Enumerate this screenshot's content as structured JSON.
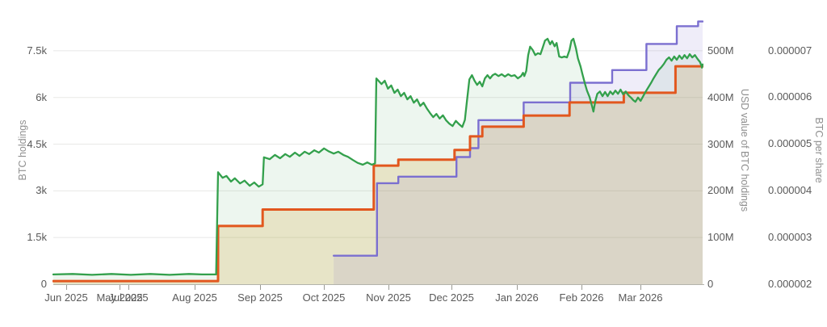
{
  "chart_data": {
    "type": "line",
    "title": "",
    "x_unit": "months after Jun 2025 tick (fractional month index)",
    "xlim": [
      -0.2,
      9.85
    ],
    "grid": true,
    "legend": "none",
    "background": "#ffffff",
    "gridline_color": "#e8e8e6",
    "axis_line_color": "#b3b3ab",
    "tick_mark_color": "#9a9a94",
    "x_ticks": [
      {
        "m": 0.0,
        "label": "Jun 2025"
      },
      {
        "m": 0.825,
        "label": "May 2025"
      },
      {
        "m": 0.9625,
        "label": "Jul 2025"
      },
      {
        "m": 1.99,
        "label": "Aug 2025"
      },
      {
        "m": 3.0,
        "label": "Sep 2025"
      },
      {
        "m": 3.99,
        "label": "Oct 2025"
      },
      {
        "m": 4.99,
        "label": "Nov 2025"
      },
      {
        "m": 5.96,
        "label": "Dec 2025"
      },
      {
        "m": 6.98,
        "label": "Jan 2026"
      },
      {
        "m": 7.98,
        "label": "Feb 2026"
      },
      {
        "m": 8.89,
        "label": "Mar 2026"
      }
    ],
    "axes": {
      "left": {
        "title": "BTC holdings",
        "min": 0,
        "max": 8560,
        "ticks": [
          {
            "v": 0,
            "label": "0"
          },
          {
            "v": 1500,
            "label": "1.5k"
          },
          {
            "v": 3000,
            "label": "3k"
          },
          {
            "v": 4500,
            "label": "4.5k"
          },
          {
            "v": 6000,
            "label": "6k"
          },
          {
            "v": 7500,
            "label": "7.5k"
          }
        ]
      },
      "usd": {
        "title": "USD value of BTC holdings",
        "min": 0,
        "max": 571,
        "unit": "millions USD",
        "ticks": [
          {
            "v": 0,
            "label": "0"
          },
          {
            "v": 100,
            "label": "100M"
          },
          {
            "v": 200,
            "label": "200M"
          },
          {
            "v": 300,
            "label": "300M"
          },
          {
            "v": 400,
            "label": "400M"
          },
          {
            "v": 500,
            "label": "500M"
          }
        ]
      },
      "share": {
        "title": "BTC per share",
        "min": 2e-06,
        "max": 7.7e-06,
        "ticks": [
          {
            "v": 2e-06,
            "label": "0.000002"
          },
          {
            "v": 3e-06,
            "label": "0.000003"
          },
          {
            "v": 4e-06,
            "label": "0.000004"
          },
          {
            "v": 5e-06,
            "label": "0.000005"
          },
          {
            "v": 6e-06,
            "label": "0.000006"
          },
          {
            "v": 7e-06,
            "label": "0.000007"
          }
        ]
      }
    },
    "series": [
      {
        "name": "USD value of BTC holdings",
        "axis": "usd",
        "style": "noisy-line",
        "color": "#33a04c",
        "fill": "rgba(51,160,76,0.09)",
        "width": 2.3,
        "points": [
          [
            -0.2,
            21
          ],
          [
            0.1,
            22
          ],
          [
            0.4,
            20
          ],
          [
            0.7,
            22
          ],
          [
            1.0,
            20
          ],
          [
            1.3,
            22
          ],
          [
            1.6,
            20
          ],
          [
            1.9,
            22
          ],
          [
            2.1,
            21
          ],
          [
            2.32,
            21
          ],
          [
            2.35,
            240
          ],
          [
            2.42,
            228
          ],
          [
            2.48,
            232
          ],
          [
            2.55,
            220
          ],
          [
            2.61,
            227
          ],
          [
            2.69,
            216
          ],
          [
            2.76,
            222
          ],
          [
            2.84,
            211
          ],
          [
            2.91,
            218
          ],
          [
            2.98,
            209
          ],
          [
            3.04,
            214
          ],
          [
            3.06,
            272
          ],
          [
            3.15,
            268
          ],
          [
            3.23,
            277
          ],
          [
            3.31,
            270
          ],
          [
            3.39,
            279
          ],
          [
            3.46,
            273
          ],
          [
            3.54,
            282
          ],
          [
            3.61,
            275
          ],
          [
            3.69,
            284
          ],
          [
            3.76,
            279
          ],
          [
            3.84,
            287
          ],
          [
            3.91,
            282
          ],
          [
            3.99,
            291
          ],
          [
            4.06,
            285
          ],
          [
            4.14,
            280
          ],
          [
            4.21,
            284
          ],
          [
            4.29,
            277
          ],
          [
            4.36,
            273
          ],
          [
            4.44,
            266
          ],
          [
            4.51,
            260
          ],
          [
            4.59,
            256
          ],
          [
            4.66,
            261
          ],
          [
            4.73,
            256
          ],
          [
            4.78,
            259
          ],
          [
            4.8,
            441
          ],
          [
            4.88,
            429
          ],
          [
            4.93,
            436
          ],
          [
            4.98,
            419
          ],
          [
            5.03,
            426
          ],
          [
            5.08,
            410
          ],
          [
            5.13,
            417
          ],
          [
            5.18,
            403
          ],
          [
            5.23,
            410
          ],
          [
            5.28,
            396
          ],
          [
            5.33,
            403
          ],
          [
            5.38,
            389
          ],
          [
            5.43,
            396
          ],
          [
            5.48,
            382
          ],
          [
            5.53,
            389
          ],
          [
            5.58,
            377
          ],
          [
            5.63,
            367
          ],
          [
            5.68,
            358
          ],
          [
            5.73,
            365
          ],
          [
            5.78,
            355
          ],
          [
            5.83,
            362
          ],
          [
            5.88,
            351
          ],
          [
            5.93,
            344
          ],
          [
            5.98,
            339
          ],
          [
            6.03,
            350
          ],
          [
            6.08,
            343
          ],
          [
            6.13,
            337
          ],
          [
            6.17,
            352
          ],
          [
            6.2,
            390
          ],
          [
            6.24,
            439
          ],
          [
            6.28,
            448
          ],
          [
            6.32,
            436
          ],
          [
            6.36,
            427
          ],
          [
            6.4,
            434
          ],
          [
            6.44,
            424
          ],
          [
            6.48,
            441
          ],
          [
            6.52,
            448
          ],
          [
            6.56,
            441
          ],
          [
            6.6,
            448
          ],
          [
            6.64,
            451
          ],
          [
            6.69,
            446
          ],
          [
            6.74,
            450
          ],
          [
            6.79,
            445
          ],
          [
            6.84,
            450
          ],
          [
            6.89,
            446
          ],
          [
            6.94,
            448
          ],
          [
            6.99,
            441
          ],
          [
            7.04,
            446
          ],
          [
            7.07,
            453
          ],
          [
            7.09,
            446
          ],
          [
            7.12,
            457
          ],
          [
            7.15,
            491
          ],
          [
            7.18,
            509
          ],
          [
            7.22,
            502
          ],
          [
            7.26,
            491
          ],
          [
            7.3,
            495
          ],
          [
            7.34,
            493
          ],
          [
            7.37,
            505
          ],
          [
            7.41,
            522
          ],
          [
            7.45,
            526
          ],
          [
            7.49,
            514
          ],
          [
            7.52,
            521
          ],
          [
            7.56,
            510
          ],
          [
            7.59,
            517
          ],
          [
            7.63,
            488
          ],
          [
            7.67,
            486
          ],
          [
            7.71,
            488
          ],
          [
            7.75,
            486
          ],
          [
            7.79,
            502
          ],
          [
            7.82,
            522
          ],
          [
            7.85,
            526
          ],
          [
            7.89,
            505
          ],
          [
            7.92,
            484
          ],
          [
            7.96,
            467
          ],
          [
            7.99,
            450
          ],
          [
            8.03,
            429
          ],
          [
            8.06,
            415
          ],
          [
            8.1,
            401
          ],
          [
            8.14,
            381
          ],
          [
            8.16,
            370
          ],
          [
            8.19,
            393
          ],
          [
            8.22,
            408
          ],
          [
            8.26,
            413
          ],
          [
            8.3,
            403
          ],
          [
            8.34,
            412
          ],
          [
            8.38,
            403
          ],
          [
            8.42,
            413
          ],
          [
            8.46,
            407
          ],
          [
            8.5,
            415
          ],
          [
            8.54,
            408
          ],
          [
            8.58,
            417
          ],
          [
            8.62,
            407
          ],
          [
            8.66,
            413
          ],
          [
            8.7,
            405
          ],
          [
            8.74,
            400
          ],
          [
            8.78,
            394
          ],
          [
            8.81,
            391
          ],
          [
            8.85,
            400
          ],
          [
            8.89,
            393
          ],
          [
            8.93,
            403
          ],
          [
            8.97,
            413
          ],
          [
            9.01,
            422
          ],
          [
            9.05,
            431
          ],
          [
            9.09,
            441
          ],
          [
            9.13,
            450
          ],
          [
            9.17,
            459
          ],
          [
            9.21,
            465
          ],
          [
            9.25,
            472
          ],
          [
            9.29,
            481
          ],
          [
            9.33,
            486
          ],
          [
            9.37,
            479
          ],
          [
            9.41,
            488
          ],
          [
            9.45,
            481
          ],
          [
            9.49,
            490
          ],
          [
            9.53,
            483
          ],
          [
            9.57,
            491
          ],
          [
            9.61,
            484
          ],
          [
            9.65,
            493
          ],
          [
            9.69,
            486
          ],
          [
            9.73,
            491
          ],
          [
            9.77,
            483
          ],
          [
            9.81,
            476
          ],
          [
            9.83,
            469
          ],
          [
            9.84,
            464
          ],
          [
            9.85,
            471
          ]
        ]
      },
      {
        "name": "BTC holdings",
        "axis": "left",
        "style": "step-line",
        "color": "#e2571e",
        "fill": "rgba(212,160,40,0.20)",
        "width": 3,
        "points": [
          [
            -0.2,
            100
          ],
          [
            2.35,
            100
          ],
          [
            2.35,
            1870
          ],
          [
            3.04,
            1870
          ],
          [
            3.04,
            2400
          ],
          [
            4.76,
            2400
          ],
          [
            4.76,
            3810
          ],
          [
            5.14,
            3810
          ],
          [
            5.14,
            4000
          ],
          [
            6.01,
            4000
          ],
          [
            6.01,
            4310
          ],
          [
            6.25,
            4310
          ],
          [
            6.25,
            4750
          ],
          [
            6.44,
            4750
          ],
          [
            6.44,
            5060
          ],
          [
            7.08,
            5060
          ],
          [
            7.08,
            5420
          ],
          [
            7.79,
            5420
          ],
          [
            7.79,
            5840
          ],
          [
            8.63,
            5840
          ],
          [
            8.63,
            6150
          ],
          [
            9.43,
            6150
          ],
          [
            9.43,
            7000
          ],
          [
            9.85,
            7000
          ]
        ]
      },
      {
        "name": "BTC per share",
        "axis": "share",
        "style": "step-line",
        "color": "#7b6fd0",
        "fill": "rgba(123,111,208,0.12)",
        "width": 2.4,
        "points": [
          [
            4.14,
            2.61e-06
          ],
          [
            4.81,
            2.61e-06
          ],
          [
            4.81,
            4.16e-06
          ],
          [
            5.14,
            4.16e-06
          ],
          [
            5.14,
            4.3e-06
          ],
          [
            6.04,
            4.3e-06
          ],
          [
            6.04,
            4.72e-06
          ],
          [
            6.25,
            4.72e-06
          ],
          [
            6.25,
            4.91e-06
          ],
          [
            6.38,
            4.91e-06
          ],
          [
            6.38,
            5.51e-06
          ],
          [
            7.08,
            5.51e-06
          ],
          [
            7.08,
            5.89e-06
          ],
          [
            7.8,
            5.89e-06
          ],
          [
            7.8,
            6.31e-06
          ],
          [
            8.45,
            6.31e-06
          ],
          [
            8.45,
            6.58e-06
          ],
          [
            8.98,
            6.58e-06
          ],
          [
            8.98,
            7.14e-06
          ],
          [
            9.45,
            7.14e-06
          ],
          [
            9.45,
            7.52e-06
          ],
          [
            9.78,
            7.52e-06
          ],
          [
            9.78,
            7.62e-06
          ],
          [
            9.85,
            7.62e-06
          ]
        ]
      }
    ]
  }
}
